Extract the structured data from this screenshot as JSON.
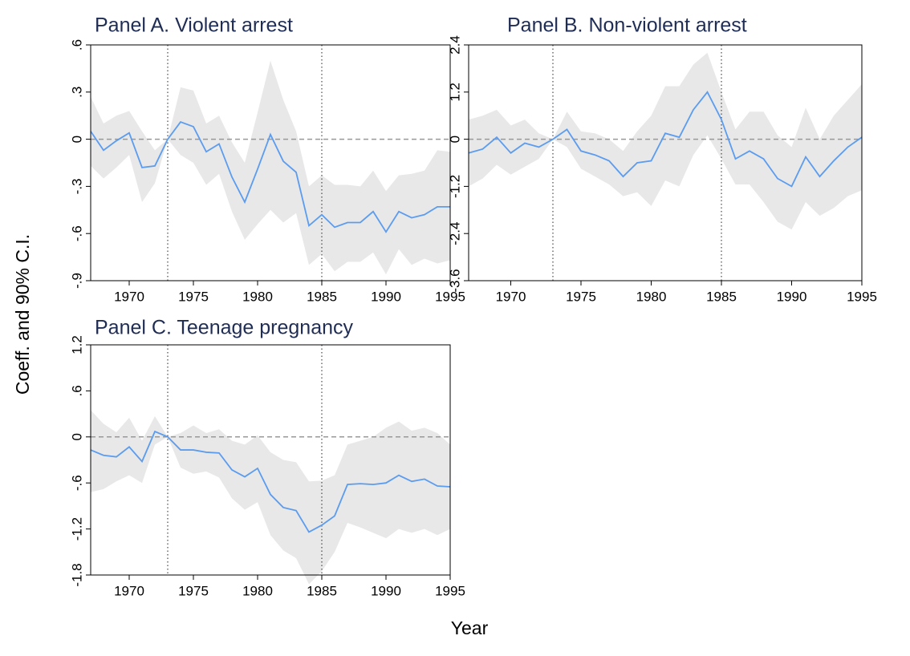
{
  "y_label": "Coeff. and 90% C.I.",
  "x_label": "Year",
  "chart_data": [
    {
      "type": "line",
      "title": "Panel A. Violent arrest",
      "x": [
        1967,
        1968,
        1969,
        1970,
        1971,
        1972,
        1973,
        1974,
        1975,
        1976,
        1977,
        1978,
        1979,
        1980,
        1981,
        1982,
        1983,
        1984,
        1985,
        1986,
        1987,
        1988,
        1989,
        1990,
        1991,
        1992,
        1993,
        1994,
        1995
      ],
      "values": [
        0.05,
        -0.07,
        -0.01,
        0.04,
        -0.18,
        -0.17,
        0,
        0.11,
        0.08,
        -0.08,
        -0.03,
        -0.24,
        -0.4,
        -0.19,
        0.03,
        -0.14,
        -0.21,
        -0.55,
        -0.48,
        -0.56,
        -0.53,
        -0.53,
        -0.46,
        -0.59,
        -0.46,
        -0.5,
        -0.48,
        -0.43,
        -0.43
      ],
      "upper": [
        0.27,
        0.1,
        0.15,
        0.18,
        0.05,
        -0.07,
        0,
        0.33,
        0.31,
        0.1,
        0.15,
        -0.02,
        -0.15,
        0.17,
        0.5,
        0.25,
        0.05,
        -0.3,
        -0.23,
        -0.29,
        -0.29,
        -0.3,
        -0.2,
        -0.33,
        -0.23,
        -0.22,
        -0.2,
        -0.07,
        -0.08
      ],
      "lower": [
        -0.17,
        -0.25,
        -0.18,
        -0.1,
        -0.4,
        -0.28,
        0,
        -0.1,
        -0.15,
        -0.29,
        -0.22,
        -0.46,
        -0.64,
        -0.54,
        -0.45,
        -0.53,
        -0.47,
        -0.8,
        -0.73,
        -0.84,
        -0.78,
        -0.78,
        -0.72,
        -0.86,
        -0.7,
        -0.8,
        -0.76,
        -0.79,
        -0.77
      ],
      "color": "#5b9cf0",
      "band_color": "#e8e8e8",
      "xlim": [
        1967,
        1995
      ],
      "xticks": [
        1970,
        1975,
        1980,
        1985,
        1990,
        1995
      ],
      "ylim": [
        -0.9,
        0.6
      ],
      "yticks": [
        {
          "value": -0.9,
          "label": "-.9"
        },
        {
          "value": -0.6,
          "label": "-.6"
        },
        {
          "value": -0.3,
          "label": "-.3"
        },
        0,
        {
          "value": 0.3,
          "label": ".3"
        },
        {
          "value": 0.6,
          "label": ".6"
        }
      ],
      "vlines": [
        1973,
        1985
      ],
      "hline": 0
    },
    {
      "type": "line",
      "title": "Panel B. Non-violent arrest",
      "x": [
        1967,
        1968,
        1969,
        1970,
        1971,
        1972,
        1973,
        1974,
        1975,
        1976,
        1977,
        1978,
        1979,
        1980,
        1981,
        1982,
        1983,
        1984,
        1985,
        1986,
        1987,
        1988,
        1989,
        1990,
        1991,
        1992,
        1993,
        1994,
        1995
      ],
      "values": [
        -0.35,
        -0.25,
        0.05,
        -0.35,
        -0.1,
        -0.2,
        0,
        0.25,
        -0.3,
        -0.4,
        -0.55,
        -0.95,
        -0.6,
        -0.55,
        0.15,
        0.05,
        0.75,
        1.2,
        0.5,
        -0.5,
        -0.3,
        -0.5,
        -1.0,
        -1.2,
        -0.45,
        -0.95,
        -0.55,
        -0.2,
        0.05
      ],
      "upper": [
        0.5,
        0.6,
        0.75,
        0.35,
        0.5,
        0.15,
        0,
        0.7,
        0.2,
        0.15,
        0,
        -0.3,
        0.2,
        0.6,
        1.35,
        1.35,
        1.9,
        2.2,
        1.2,
        0.25,
        0.7,
        0.7,
        0.1,
        -0.2,
        0.8,
        0,
        0.6,
        1.0,
        1.4
      ],
      "lower": [
        -1.2,
        -1.0,
        -0.65,
        -0.9,
        -0.7,
        -0.5,
        0,
        -0.2,
        -0.75,
        -0.95,
        -1.15,
        -1.45,
        -1.35,
        -1.7,
        -1.05,
        -1.2,
        -0.4,
        0.1,
        -0.5,
        -1.15,
        -1.15,
        -1.6,
        -2.1,
        -2.3,
        -1.6,
        -1.95,
        -1.75,
        -1.45,
        -1.3
      ],
      "color": "#5b9cf0",
      "band_color": "#e8e8e8",
      "xlim": [
        1967,
        1995
      ],
      "xticks": [
        1970,
        1975,
        1980,
        1985,
        1990,
        1995
      ],
      "ylim": [
        -3.6,
        2.4
      ],
      "yticks": [
        -3.6,
        -2.4,
        -1.2,
        0,
        1.2,
        2.4
      ],
      "vlines": [
        1973,
        1985
      ],
      "hline": 0
    },
    {
      "type": "line",
      "title": "Panel C. Teenage pregnancy",
      "x": [
        1967,
        1968,
        1969,
        1970,
        1971,
        1972,
        1973,
        1974,
        1975,
        1976,
        1977,
        1978,
        1979,
        1980,
        1981,
        1982,
        1983,
        1984,
        1985,
        1986,
        1987,
        1988,
        1989,
        1990,
        1991,
        1992,
        1993,
        1994,
        1995
      ],
      "values": [
        -0.17,
        -0.24,
        -0.26,
        -0.13,
        -0.32,
        0.07,
        0,
        -0.17,
        -0.17,
        -0.2,
        -0.21,
        -0.43,
        -0.52,
        -0.41,
        -0.75,
        -0.92,
        -0.96,
        -1.24,
        -1.15,
        -1.03,
        -0.62,
        -0.61,
        -0.62,
        -0.6,
        -0.5,
        -0.58,
        -0.55,
        -0.64,
        -0.65
      ],
      "upper": [
        0.35,
        0.17,
        0.06,
        0.25,
        -0.05,
        0.27,
        0,
        0.05,
        0.15,
        0.05,
        0.1,
        -0.05,
        -0.1,
        0.02,
        -0.2,
        -0.3,
        -0.33,
        -0.58,
        -0.57,
        -0.5,
        -0.1,
        -0.05,
        0,
        0.12,
        0.2,
        0.08,
        0.12,
        0.05,
        -0.1
      ],
      "lower": [
        -0.72,
        -0.68,
        -0.58,
        -0.5,
        -0.6,
        -0.1,
        0,
        -0.4,
        -0.48,
        -0.45,
        -0.53,
        -0.8,
        -0.95,
        -0.85,
        -1.28,
        -1.48,
        -1.58,
        -1.92,
        -1.75,
        -1.5,
        -1.12,
        -1.18,
        -1.25,
        -1.32,
        -1.2,
        -1.25,
        -1.2,
        -1.28,
        -1.2
      ],
      "color": "#5b9cf0",
      "band_color": "#e8e8e8",
      "xlim": [
        1967,
        1995
      ],
      "xticks": [
        1970,
        1975,
        1980,
        1985,
        1990,
        1995
      ],
      "ylim": [
        -1.8,
        1.2
      ],
      "yticks": [
        -1.8,
        -1.2,
        {
          "value": -0.6,
          "label": "-.6"
        },
        0,
        {
          "value": 0.6,
          "label": ".6"
        },
        1.2
      ],
      "vlines": [
        1973,
        1985
      ],
      "hline": 0
    }
  ]
}
